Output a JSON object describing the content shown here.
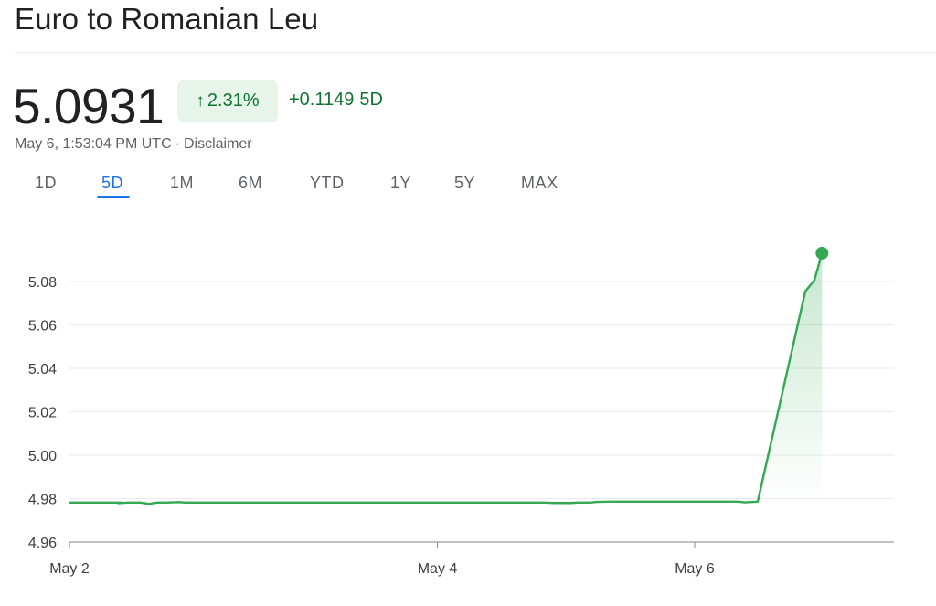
{
  "header": {
    "title": "Euro to Romanian Leu"
  },
  "quote": {
    "price": "5.0931",
    "change_percent": "2.31%",
    "change_arrow": "↑",
    "change_abs": "+0.1149",
    "change_period": "5D",
    "timestamp": "May 6, 1:53:04 PM UTC",
    "separator": "·",
    "disclaimer": "Disclaimer"
  },
  "tabs": [
    {
      "label": "1D"
    },
    {
      "label": "5D"
    },
    {
      "label": "1M"
    },
    {
      "label": "6M"
    },
    {
      "label": "YTD"
    },
    {
      "label": "1Y"
    },
    {
      "label": "5Y"
    },
    {
      "label": "MAX"
    }
  ],
  "colors": {
    "positive": "#137333",
    "line": "#34a853",
    "active_tab": "#1a73e8"
  },
  "chart_data": {
    "type": "line",
    "ylim": [
      4.96,
      5.09
    ],
    "xlim": [
      0,
      6.3
    ],
    "y_ticks": [
      4.96,
      4.98,
      5.0,
      5.02,
      5.04,
      5.06,
      5.08
    ],
    "y_tick_labels": [
      "4.96",
      "4.98",
      "5.00",
      "5.02",
      "5.04",
      "5.06",
      "5.08"
    ],
    "x_ticks": [
      0,
      2.86,
      4.86
    ],
    "x_tick_labels": [
      "May 2",
      "May 4",
      "May 6"
    ],
    "grid": true,
    "series": [
      {
        "x": [
          0,
          0.4,
          0.38,
          0.45,
          0.55,
          0.62,
          0.68,
          0.75,
          0.85,
          0.9,
          1.0,
          1.2,
          1.5,
          2.0,
          2.5,
          3.0,
          3.7,
          3.77,
          3.9,
          3.95,
          4.05,
          4.1,
          4.2,
          4.3,
          4.6,
          5.2,
          5.25,
          5.35,
          5.72,
          5.79,
          5.85
        ],
        "y": [
          4.9782,
          4.9782,
          4.9779,
          4.9782,
          4.9782,
          4.9776,
          4.9782,
          4.9782,
          4.9784,
          4.9782,
          4.9782,
          4.9782,
          4.9782,
          4.9782,
          4.9782,
          4.9782,
          4.9782,
          4.978,
          4.978,
          4.9782,
          4.9782,
          4.9785,
          4.9786,
          4.9786,
          4.9786,
          4.9786,
          4.9783,
          4.9786,
          5.0755,
          5.0805,
          5.0931
        ]
      }
    ],
    "last_value": 5.0931
  }
}
